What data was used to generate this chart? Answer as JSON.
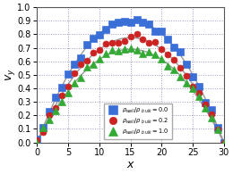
{
  "title": "",
  "xlabel": "$x$",
  "ylabel": "$v_y$",
  "xlim": [
    0,
    30
  ],
  "ylim": [
    0,
    1
  ],
  "xticks": [
    0,
    5,
    10,
    15,
    20,
    25,
    30
  ],
  "yticks": [
    0,
    0.1,
    0.2,
    0.3,
    0.4,
    0.5,
    0.6,
    0.7,
    0.8,
    0.9,
    1
  ],
  "L": 32,
  "series": [
    {
      "label": "$\\rho_{wall}/\\rho_{\\ b\\, ulk} = 0.0$",
      "color": "#3a6fd8",
      "marker": "s",
      "v_max": 0.905,
      "markersize": 5.5
    },
    {
      "label": "$\\rho_{wall}/\\rho_{\\ b\\, ulk} = 0.2$",
      "color": "#cc2222",
      "marker": "o",
      "v_max": 0.775,
      "markersize": 5.0
    },
    {
      "label": "$\\rho_{wall}/\\rho_{\\ b\\,ulk} = 1.0$",
      "color": "#33aa33",
      "marker": "^",
      "v_max": 0.69,
      "markersize": 5.5
    }
  ],
  "fit_color": "#999999",
  "noise_scale": 0.013,
  "background_color": "#ffffff",
  "grid_color": "#9999bb",
  "figsize": [
    2.6,
    1.95
  ],
  "dpi": 100
}
